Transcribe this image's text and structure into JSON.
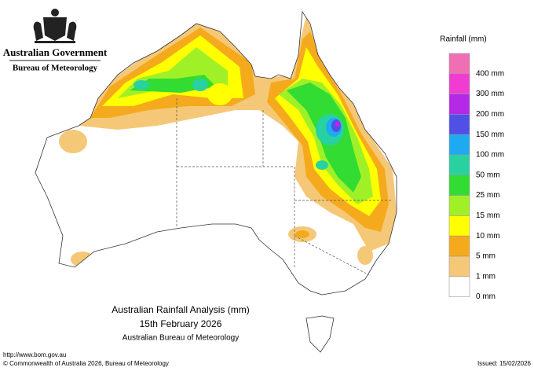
{
  "header": {
    "government": "Australian Government",
    "bureau": "Bureau of Meteorology"
  },
  "legend": {
    "title": "Rainfall (mm)",
    "items": [
      {
        "label": null,
        "color": "#f06eb4"
      },
      {
        "label": "400 mm",
        "color": "#f03cd2"
      },
      {
        "label": "300 mm",
        "color": "#b428e6"
      },
      {
        "label": "200 mm",
        "color": "#5050e6"
      },
      {
        "label": "150 mm",
        "color": "#1eaaf0"
      },
      {
        "label": "100 mm",
        "color": "#28d2a0"
      },
      {
        "label": "50 mm",
        "color": "#32dc32"
      },
      {
        "label": "25 mm",
        "color": "#a0f028"
      },
      {
        "label": "15 mm",
        "color": "#ffff00"
      },
      {
        "label": "10 mm",
        "color": "#f5aa1e"
      },
      {
        "label": "5 mm",
        "color": "#f5c878"
      },
      {
        "label": "1 mm",
        "color": "#ffffff"
      },
      {
        "label": "0 mm",
        "color": null
      }
    ]
  },
  "map_title": {
    "line1": "Australian Rainfall Analysis (mm)",
    "line2": "15th February 2026",
    "line3": "Australian Bureau of Meteorology"
  },
  "footer": {
    "url": "http://www.bom.gov.au",
    "copyright": "© Commonwealth of Australia 2026, Bureau of Meteorology",
    "issued": "Issued: 15/02/2026"
  }
}
